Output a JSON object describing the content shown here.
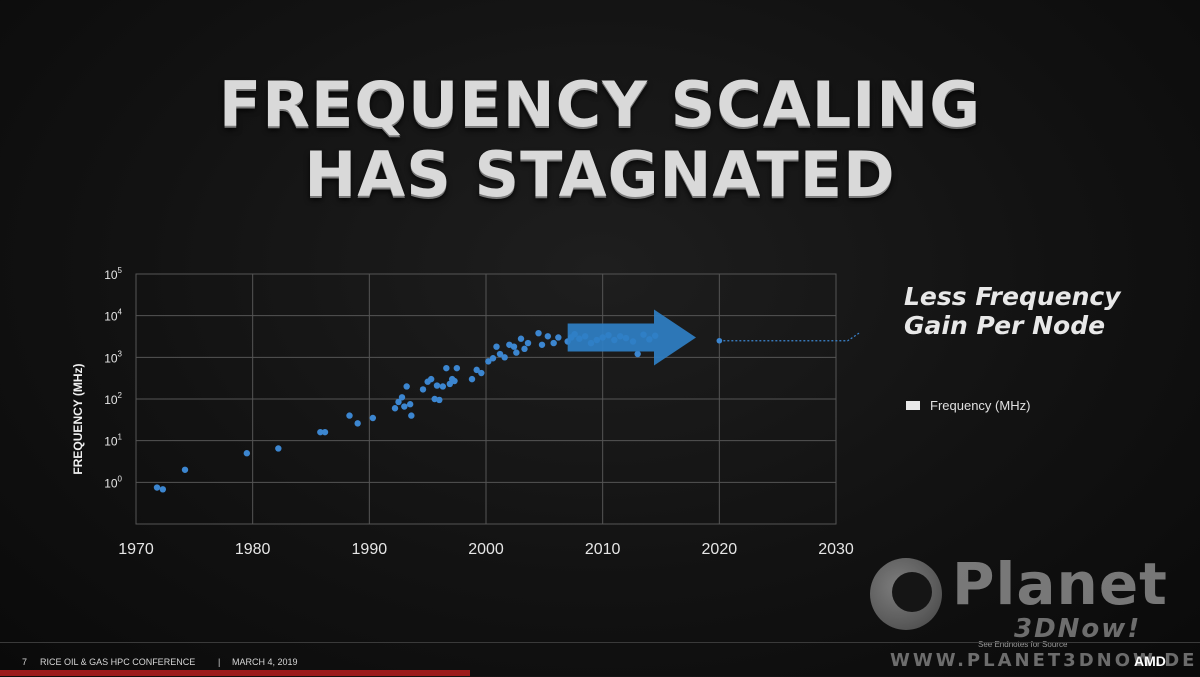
{
  "slide": {
    "title_line1": "FREQUENCY SCALING",
    "title_line2": "HAS STAGNATED",
    "annotation_line1": "Less Frequency",
    "annotation_line2": "Gain Per Node",
    "legend_label": "Frequency (MHz)",
    "source_note": "See Endnotes for Source",
    "footer_number": "7",
    "footer_conference": "RICE OIL & GAS HPC CONFERENCE",
    "footer_separator": "|",
    "footer_date": "MARCH 4, 2019",
    "footer_logo": "AMD"
  },
  "watermark": {
    "brand": "Planet",
    "sub": "3DNow!",
    "url": "WWW.PLANET3DNOW.DE"
  },
  "colors": {
    "point": "#3c86d0",
    "arrow": "#2f7fc4",
    "grid": "#555555",
    "accent_footer": "#9c1b1b"
  },
  "chart_data": {
    "type": "scatter",
    "ylabel": "FREQUENCY (MHz)",
    "xlabel": "",
    "y_scale": "log",
    "xlim": [
      1970,
      2030
    ],
    "ylim_exponent": [
      -1,
      5
    ],
    "x_ticks": [
      1970,
      1980,
      1990,
      2000,
      2010,
      2020,
      2030
    ],
    "y_ticks": [
      {
        "base": "10",
        "exp": "5"
      },
      {
        "base": "10",
        "exp": "4"
      },
      {
        "base": "10",
        "exp": "3"
      },
      {
        "base": "10",
        "exp": "2"
      },
      {
        "base": "10",
        "exp": "1"
      },
      {
        "base": "10",
        "exp": "0"
      }
    ],
    "grid": true,
    "legend_placement": "right",
    "series": [
      {
        "name": "Frequency (MHz)",
        "points": [
          [
            1971.8,
            0.75
          ],
          [
            1972.3,
            0.68
          ],
          [
            1974.2,
            2
          ],
          [
            1979.5,
            5
          ],
          [
            1982.2,
            6.5
          ],
          [
            1985.8,
            16
          ],
          [
            1986.2,
            16
          ],
          [
            1988.3,
            40
          ],
          [
            1989.0,
            26
          ],
          [
            1990.3,
            35
          ],
          [
            1992.2,
            60
          ],
          [
            1992.5,
            85
          ],
          [
            1992.8,
            110
          ],
          [
            1993.0,
            66
          ],
          [
            1993.2,
            200
          ],
          [
            1993.5,
            75
          ],
          [
            1993.6,
            40
          ],
          [
            1994.6,
            170
          ],
          [
            1995.0,
            260
          ],
          [
            1995.3,
            300
          ],
          [
            1995.6,
            100
          ],
          [
            1995.8,
            210
          ],
          [
            1996.0,
            95
          ],
          [
            1996.3,
            200
          ],
          [
            1996.6,
            550
          ],
          [
            1996.9,
            230
          ],
          [
            1997.1,
            300
          ],
          [
            1997.3,
            270
          ],
          [
            1997.5,
            550
          ],
          [
            1998.8,
            300
          ],
          [
            1999.2,
            500
          ],
          [
            1999.6,
            420
          ],
          [
            2000.2,
            800
          ],
          [
            2000.6,
            950
          ],
          [
            2000.9,
            1800
          ],
          [
            2001.2,
            1200
          ],
          [
            2001.6,
            1000
          ],
          [
            2002.0,
            2000
          ],
          [
            2002.4,
            1800
          ],
          [
            2002.6,
            1300
          ],
          [
            2003.0,
            2800
          ],
          [
            2003.3,
            1600
          ],
          [
            2003.6,
            2200
          ],
          [
            2004.5,
            3800
          ],
          [
            2004.8,
            2000
          ],
          [
            2005.3,
            3200
          ],
          [
            2005.8,
            2200
          ],
          [
            2006.2,
            3000
          ],
          [
            2007.0,
            2400
          ],
          [
            2007.3,
            3000
          ],
          [
            2007.6,
            3600
          ],
          [
            2008.0,
            2800
          ],
          [
            2008.5,
            3200
          ],
          [
            2009.0,
            2200
          ],
          [
            2009.5,
            2600
          ],
          [
            2010.0,
            3000
          ],
          [
            2010.5,
            3400
          ],
          [
            2011.0,
            2600
          ],
          [
            2011.5,
            3200
          ],
          [
            2012.0,
            2900
          ],
          [
            2012.6,
            2400
          ],
          [
            2013.0,
            1200
          ],
          [
            2013.5,
            3500
          ],
          [
            2014.0,
            2700
          ],
          [
            2014.5,
            3300
          ]
        ]
      }
    ],
    "projection": {
      "start": [
        2020,
        2500
      ],
      "flat_end": [
        2031,
        2500
      ],
      "end": [
        2035,
        14000
      ]
    },
    "trend_arrow": {
      "x_start": 2007,
      "x_end": 2018,
      "y": 3000
    }
  }
}
